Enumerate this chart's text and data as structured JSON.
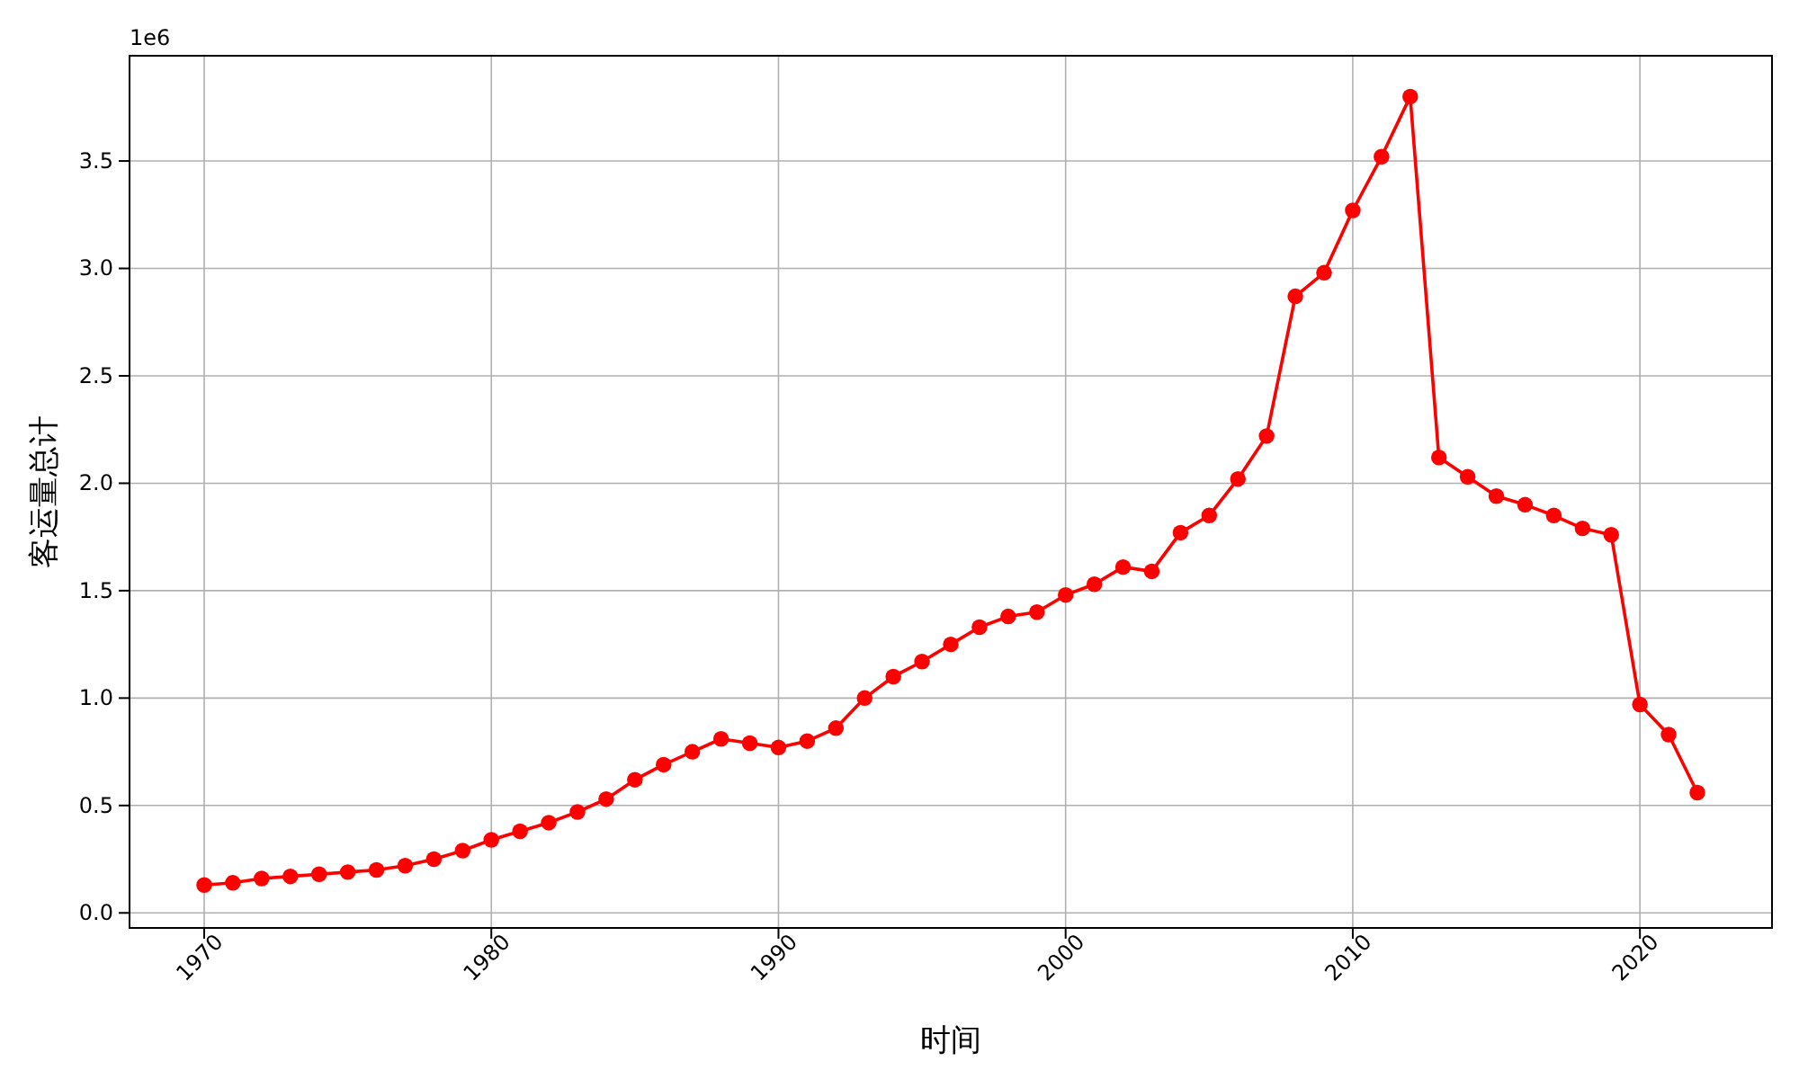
{
  "chart_data": {
    "type": "line",
    "xlabel": "时间",
    "ylabel": "客运量总计",
    "annotations": [
      "1e6"
    ],
    "x": [
      1970,
      1971,
      1972,
      1973,
      1974,
      1975,
      1976,
      1977,
      1978,
      1979,
      1980,
      1981,
      1982,
      1983,
      1984,
      1985,
      1986,
      1987,
      1988,
      1989,
      1990,
      1991,
      1992,
      1993,
      1994,
      1995,
      1996,
      1997,
      1998,
      1999,
      2000,
      2001,
      2002,
      2003,
      2004,
      2005,
      2006,
      2007,
      2008,
      2009,
      2010,
      2011,
      2012,
      2013,
      2014,
      2015,
      2016,
      2017,
      2018,
      2019,
      2020,
      2021,
      2022
    ],
    "series": [
      {
        "color": "#ff0000",
        "values": [
          0.13,
          0.14,
          0.16,
          0.17,
          0.18,
          0.19,
          0.2,
          0.22,
          0.25,
          0.29,
          0.34,
          0.38,
          0.42,
          0.47,
          0.53,
          0.62,
          0.69,
          0.75,
          0.81,
          0.79,
          0.77,
          0.8,
          0.86,
          1.0,
          1.1,
          1.17,
          1.25,
          1.33,
          1.38,
          1.4,
          1.48,
          1.53,
          1.61,
          1.59,
          1.77,
          1.85,
          2.02,
          2.22,
          2.87,
          2.98,
          3.27,
          3.52,
          3.8,
          2.12,
          2.03,
          1.94,
          1.9,
          1.85,
          1.79,
          1.76,
          0.97,
          0.83,
          0.56
        ]
      }
    ],
    "xlim": [
      1967.4,
      2024.6
    ],
    "ylim": [
      -0.07,
      3.99
    ],
    "xticks": [
      1970,
      1980,
      1990,
      2000,
      2010,
      2020
    ],
    "yticks": [
      {
        "value": 0,
        "label": "0.0"
      },
      0.5,
      {
        "value": 1,
        "label": "1.0"
      },
      1.5,
      {
        "value": 2,
        "label": "2.0"
      },
      2.5,
      {
        "value": 3,
        "label": "3.0"
      },
      3.5
    ],
    "grid": true,
    "marker": "circle",
    "line_style": "solid"
  }
}
